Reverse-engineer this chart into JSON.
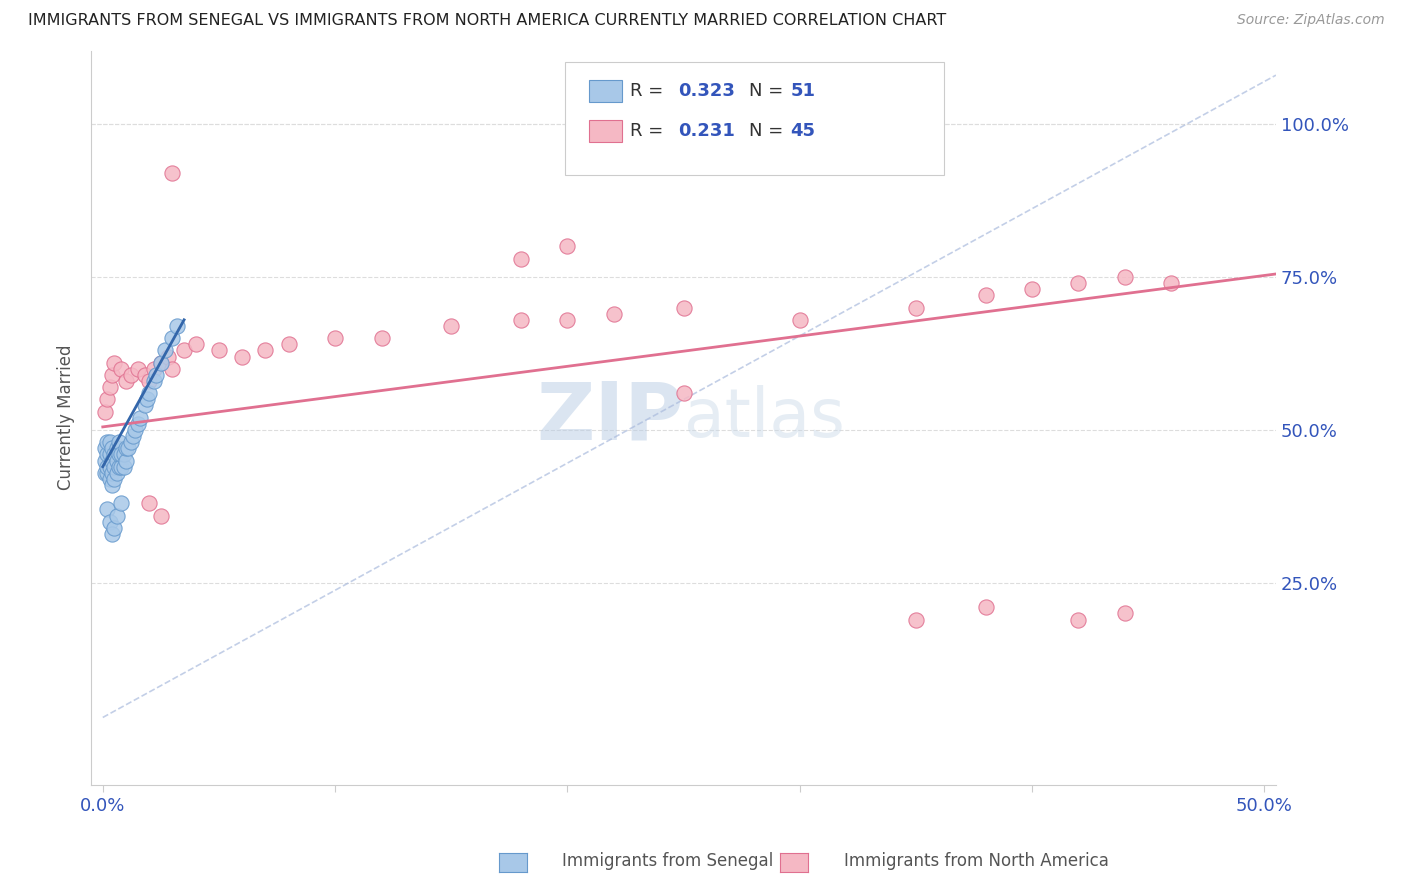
{
  "title": "IMMIGRANTS FROM SENEGAL VS IMMIGRANTS FROM NORTH AMERICA CURRENTLY MARRIED CORRELATION CHART",
  "source": "Source: ZipAtlas.com",
  "ylabel": "Currently Married",
  "legend_label1": "Immigrants from Senegal",
  "legend_label2": "Immigrants from North America",
  "R1": 0.323,
  "N1": 51,
  "R2": 0.231,
  "N2": 45,
  "xlim": [
    -0.005,
    0.505
  ],
  "ylim": [
    -0.08,
    1.12
  ],
  "xtick_values": [
    0.0,
    0.1,
    0.2,
    0.3,
    0.4,
    0.5
  ],
  "xtick_labels": [
    "0.0%",
    "",
    "",
    "",
    "",
    "50.0%"
  ],
  "ytick_values": [
    0.25,
    0.5,
    0.75,
    1.0
  ],
  "ytick_labels": [
    "25.0%",
    "50.0%",
    "75.0%",
    "100.0%"
  ],
  "color_blue": "#a8c8e8",
  "color_blue_edge": "#6699cc",
  "color_pink": "#f5b8c4",
  "color_pink_edge": "#e07090",
  "color_blue_line": "#3366aa",
  "color_pink_line": "#e07090",
  "color_dashed": "#aabbdd",
  "color_axis_labels": "#3355bb",
  "color_grid": "#dddddd",
  "watermark_color": "#c8d8f0",
  "blue_scatter_x": [
    0.001,
    0.001,
    0.001,
    0.002,
    0.002,
    0.002,
    0.002,
    0.003,
    0.003,
    0.003,
    0.003,
    0.004,
    0.004,
    0.004,
    0.004,
    0.005,
    0.005,
    0.005,
    0.006,
    0.006,
    0.006,
    0.007,
    0.007,
    0.007,
    0.008,
    0.008,
    0.009,
    0.009,
    0.01,
    0.01,
    0.011,
    0.012,
    0.013,
    0.014,
    0.015,
    0.016,
    0.018,
    0.019,
    0.02,
    0.022,
    0.023,
    0.025,
    0.027,
    0.03,
    0.032,
    0.002,
    0.003,
    0.004,
    0.005,
    0.006,
    0.008
  ],
  "blue_scatter_y": [
    0.43,
    0.45,
    0.47,
    0.43,
    0.44,
    0.46,
    0.48,
    0.42,
    0.44,
    0.46,
    0.48,
    0.41,
    0.43,
    0.45,
    0.47,
    0.42,
    0.44,
    0.46,
    0.43,
    0.45,
    0.47,
    0.44,
    0.46,
    0.48,
    0.44,
    0.46,
    0.44,
    0.46,
    0.45,
    0.47,
    0.47,
    0.48,
    0.49,
    0.5,
    0.51,
    0.52,
    0.54,
    0.55,
    0.56,
    0.58,
    0.59,
    0.61,
    0.63,
    0.65,
    0.67,
    0.37,
    0.35,
    0.33,
    0.34,
    0.36,
    0.38
  ],
  "pink_scatter_x": [
    0.001,
    0.002,
    0.003,
    0.004,
    0.005,
    0.008,
    0.01,
    0.012,
    0.015,
    0.018,
    0.02,
    0.022,
    0.025,
    0.028,
    0.03,
    0.035,
    0.04,
    0.05,
    0.06,
    0.07,
    0.08,
    0.1,
    0.12,
    0.15,
    0.18,
    0.2,
    0.22,
    0.25,
    0.3,
    0.35,
    0.38,
    0.4,
    0.42,
    0.44,
    0.46,
    0.02,
    0.025,
    0.03,
    0.18,
    0.35,
    0.38,
    0.42,
    0.44,
    0.2,
    0.25
  ],
  "pink_scatter_y": [
    0.53,
    0.55,
    0.57,
    0.59,
    0.61,
    0.6,
    0.58,
    0.59,
    0.6,
    0.59,
    0.58,
    0.6,
    0.61,
    0.62,
    0.6,
    0.63,
    0.64,
    0.63,
    0.62,
    0.63,
    0.64,
    0.65,
    0.65,
    0.67,
    0.68,
    0.68,
    0.69,
    0.7,
    0.68,
    0.7,
    0.72,
    0.73,
    0.74,
    0.75,
    0.74,
    0.38,
    0.36,
    0.92,
    0.78,
    0.19,
    0.21,
    0.19,
    0.2,
    0.8,
    0.56
  ],
  "blue_trend_x": [
    0.0,
    0.035
  ],
  "blue_trend_y": [
    0.44,
    0.68
  ],
  "pink_trend_x": [
    0.0,
    0.505
  ],
  "pink_trend_y": [
    0.505,
    0.755
  ],
  "dashed_line_x": [
    0.0,
    0.505
  ],
  "dashed_line_y": [
    0.03,
    1.08
  ]
}
